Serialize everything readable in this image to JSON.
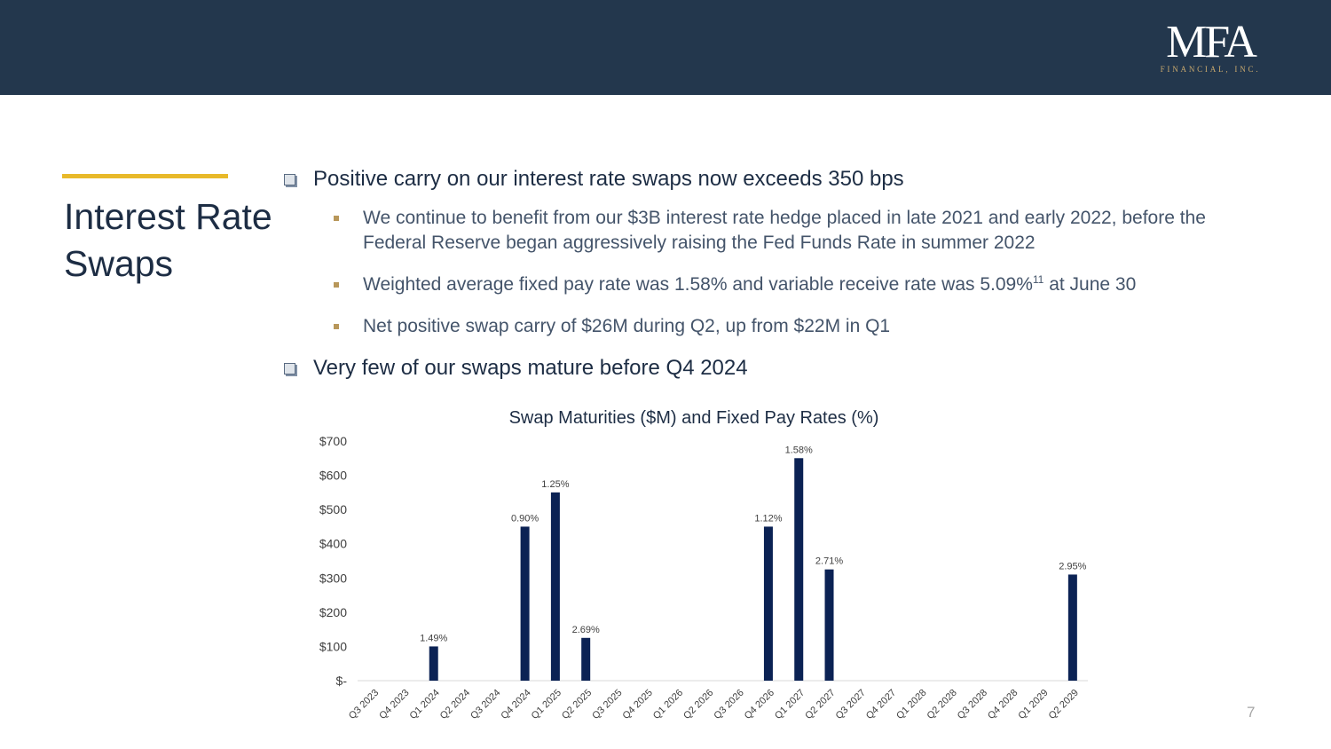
{
  "header": {
    "logo_main": "MFA",
    "logo_sub": "FINANCIAL, INC."
  },
  "side_title": "Interest Rate Swaps",
  "bullets": {
    "b1": "Positive carry on our interest rate swaps now exceeds 350 bps",
    "s1": "We continue to benefit from our $3B interest rate hedge placed in late 2021 and early 2022, before the Federal Reserve began aggressively raising the Fed Funds Rate in summer 2022",
    "s2_text": "Weighted average fixed pay rate was 1.58% and variable receive rate was 5.09%",
    "s2_sup": "11",
    "s2_tail": " at June 30",
    "s3": "Net positive swap carry of $26M during Q2, up from $22M in Q1",
    "b2": "Very few of our swaps mature before Q4 2024"
  },
  "page_number": "7",
  "colors": {
    "header_bg": "#23374d",
    "accent": "#e8b92a",
    "bar": "#0b2254"
  },
  "chart_data": {
    "type": "bar",
    "title": "Swap Maturities ($M) and Fixed Pay Rates (%)",
    "xlabel": "",
    "ylabel": "",
    "ylim": [
      0,
      700
    ],
    "yticks": [
      "$-",
      "$100",
      "$200",
      "$300",
      "$400",
      "$500",
      "$600",
      "$700"
    ],
    "categories": [
      "Q3 2023",
      "Q4 2023",
      "Q1 2024",
      "Q2 2024",
      "Q3 2024",
      "Q4 2024",
      "Q1 2025",
      "Q2 2025",
      "Q3 2025",
      "Q4 2025",
      "Q1 2026",
      "Q2 2026",
      "Q3 2026",
      "Q4 2026",
      "Q1 2027",
      "Q2 2027",
      "Q3 2027",
      "Q4 2027",
      "Q1 2028",
      "Q2 2028",
      "Q3 2028",
      "Q4 2028",
      "Q1 2029",
      "Q2 2029"
    ],
    "values": [
      0,
      0,
      100,
      0,
      0,
      450,
      550,
      125,
      0,
      0,
      0,
      0,
      0,
      450,
      650,
      325,
      0,
      0,
      0,
      0,
      0,
      0,
      0,
      310
    ],
    "labels": [
      "",
      "",
      "1.49%",
      "",
      "",
      "0.90%",
      "1.25%",
      "2.69%",
      "",
      "",
      "",
      "",
      "",
      "1.12%",
      "1.58%",
      "2.71%",
      "",
      "",
      "",
      "",
      "",
      "",
      "",
      "2.95%"
    ],
    "grid": false,
    "legend": "none"
  }
}
